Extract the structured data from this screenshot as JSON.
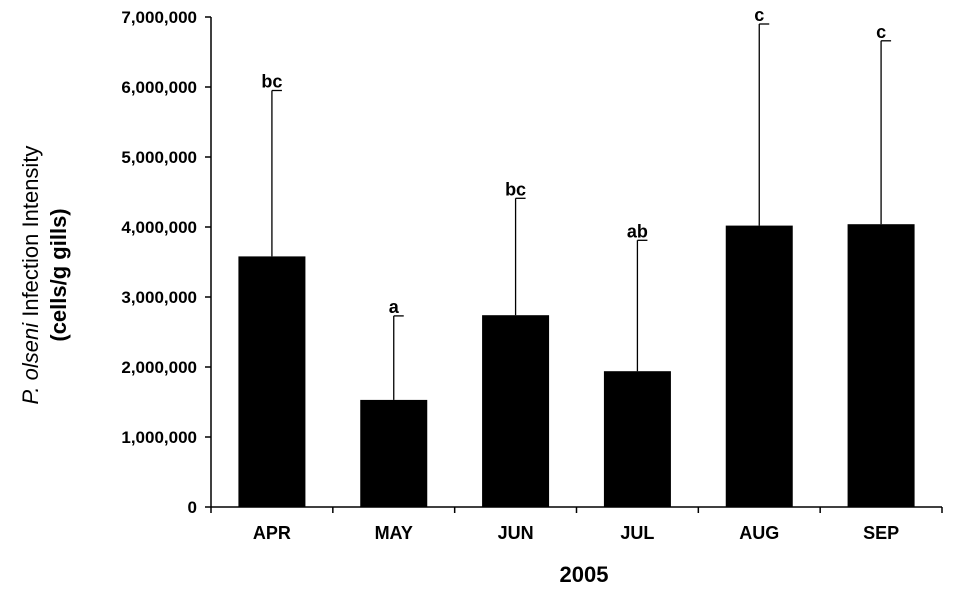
{
  "chart_data": {
    "type": "bar",
    "categories": [
      "APR",
      "MAY",
      "JUN",
      "JUL",
      "AUG",
      "SEP"
    ],
    "values": [
      3580000,
      1530000,
      2740000,
      1940000,
      4020000,
      4040000
    ],
    "error_upper": [
      5950000,
      2730000,
      4410000,
      3810000,
      6900000,
      6660000
    ],
    "significance": [
      "bc",
      "a",
      "bc",
      "ab",
      "c",
      "c"
    ],
    "xlabel": "2005",
    "ylabel_species": "P. olseni",
    "ylabel_rest": " Infection Intensity",
    "ylabel_unit": "(cells/g gills)",
    "ylim": [
      0,
      7000000
    ],
    "y_ticks": [
      0,
      1000000,
      2000000,
      3000000,
      4000000,
      5000000,
      6000000,
      7000000
    ],
    "y_tick_labels": [
      "0",
      "1,000,000",
      "2,000,000",
      "3,000,000",
      "4,000,000",
      "5,000,000",
      "6,000,000",
      "7,000,000"
    ],
    "grid": false,
    "bar_color": "#000000"
  }
}
